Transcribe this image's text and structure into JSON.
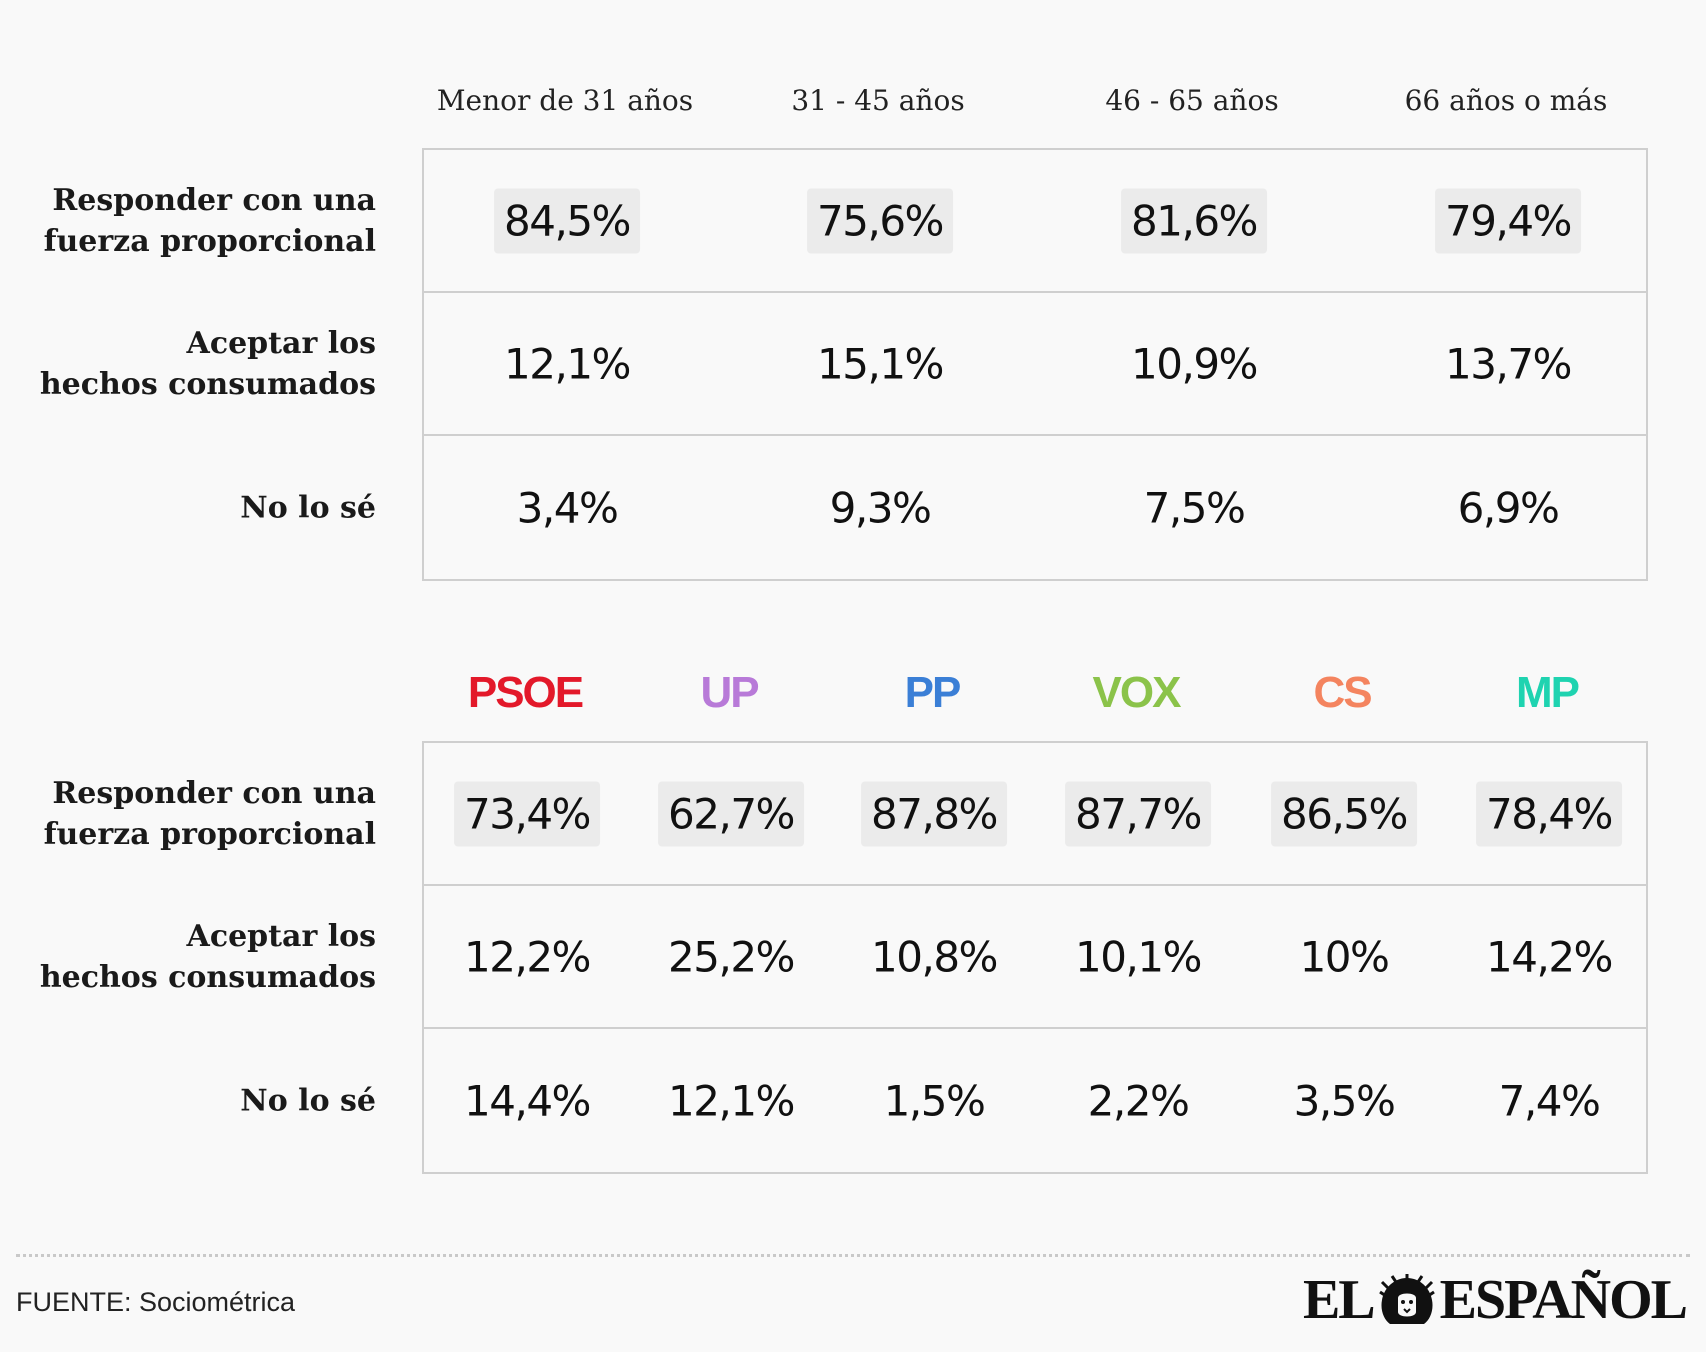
{
  "age_table": {
    "columns": [
      "Menor de 31 años",
      "31 - 45 años",
      "46 - 65 años",
      "66 años o más"
    ],
    "rows": [
      {
        "label_lines": [
          "Responder con una",
          "fuerza proporcional"
        ],
        "values": [
          "84,5%",
          "75,6%",
          "81,6%",
          "79,4%"
        ],
        "highlight": true
      },
      {
        "label_lines": [
          "Aceptar los",
          "hechos consumados"
        ],
        "values": [
          "12,1%",
          "15,1%",
          "10,9%",
          "13,7%"
        ],
        "highlight": false
      },
      {
        "label_lines": [
          "No lo sé"
        ],
        "values": [
          "3,4%",
          "9,3%",
          "7,5%",
          "6,9%"
        ],
        "highlight": false
      }
    ]
  },
  "party_table": {
    "columns": [
      {
        "label": "PSOE",
        "color": "#e3192a"
      },
      {
        "label": "UP",
        "color": "#b87ad8"
      },
      {
        "label": "PP",
        "color": "#3b7fd6"
      },
      {
        "label": "VOX",
        "color": "#8bc34a"
      },
      {
        "label": "CS",
        "color": "#f4845f"
      },
      {
        "label": "MP",
        "color": "#1fd3b0"
      }
    ],
    "rows": [
      {
        "label_lines": [
          "Responder con una",
          "fuerza proporcional"
        ],
        "values": [
          "73,4%",
          "62,7%",
          "87,8%",
          "87,7%",
          "86,5%",
          "78,4%"
        ],
        "highlight": true
      },
      {
        "label_lines": [
          "Aceptar los",
          "hechos consumados"
        ],
        "values": [
          "12,2%",
          "25,2%",
          "10,8%",
          "10,1%",
          "10%",
          "14,2%"
        ],
        "highlight": false
      },
      {
        "label_lines": [
          "No lo sé"
        ],
        "values": [
          "14,4%",
          "12,1%",
          "1,5%",
          "2,2%",
          "3,5%",
          "7,4%"
        ],
        "highlight": false
      }
    ]
  },
  "chart_data": [
    {
      "type": "table",
      "columns": [
        "Menor de 31 años",
        "31 - 45 años",
        "46 - 65 años",
        "66 años o más"
      ],
      "rows": [
        "Responder con una fuerza proporcional",
        "Aceptar los hechos consumados",
        "No lo sé"
      ],
      "values": [
        [
          84.5,
          75.6,
          81.6,
          79.4
        ],
        [
          12.1,
          15.1,
          10.9,
          13.7
        ],
        [
          3.4,
          9.3,
          7.5,
          6.9
        ]
      ],
      "unit": "%"
    },
    {
      "type": "table",
      "columns": [
        "PSOE",
        "UP",
        "PP",
        "VOX",
        "CS",
        "MP"
      ],
      "rows": [
        "Responder con una fuerza proporcional",
        "Aceptar los hechos consumados",
        "No lo sé"
      ],
      "values": [
        [
          73.4,
          62.7,
          87.8,
          87.7,
          86.5,
          78.4
        ],
        [
          12.2,
          25.2,
          10.8,
          10.1,
          10.0,
          14.2
        ],
        [
          14.4,
          12.1,
          1.5,
          2.2,
          3.5,
          7.4
        ]
      ],
      "unit": "%"
    }
  ],
  "footer": {
    "source": "FUENTE: Sociométrica",
    "logo_left": "EL",
    "logo_right": "ESPAÑOL",
    "logo_icon": "lion-head-icon"
  }
}
